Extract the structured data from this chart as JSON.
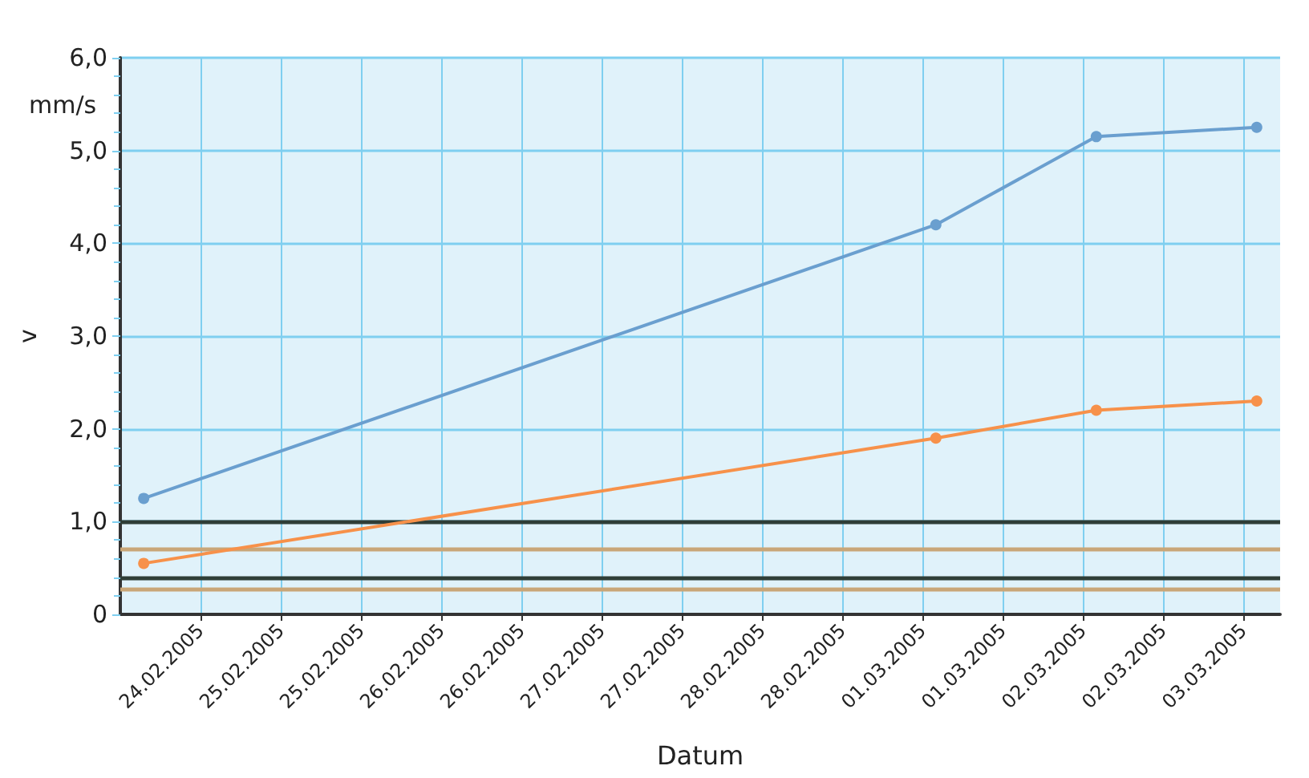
{
  "chart_data": {
    "type": "line",
    "xlabel": "Datum",
    "ylabel": "v",
    "annotations": [
      "mm/s"
    ],
    "xlim": [
      "2005-02-24T00:00",
      "2005-03-03T05:30"
    ],
    "xticks": [
      {
        "value": "2005-02-24T12:00",
        "label": "24.02.2005"
      },
      {
        "value": "2005-02-25T00:00",
        "label": "25.02.2005"
      },
      {
        "value": "2005-02-25T12:00",
        "label": "25.02.2005"
      },
      {
        "value": "2005-02-26T00:00",
        "label": "26.02.2005"
      },
      {
        "value": "2005-02-26T12:00",
        "label": "26.02.2005"
      },
      {
        "value": "2005-02-27T00:00",
        "label": "27.02.2005"
      },
      {
        "value": "2005-02-27T12:00",
        "label": "27.02.2005"
      },
      {
        "value": "2005-02-28T00:00",
        "label": "28.02.2005"
      },
      {
        "value": "2005-02-28T12:00",
        "label": "28.02.2005"
      },
      {
        "value": "2005-03-01T00:00",
        "label": "01.03.2005"
      },
      {
        "value": "2005-03-01T12:00",
        "label": "01.03.2005"
      },
      {
        "value": "2005-03-02T00:00",
        "label": "02.03.2005"
      },
      {
        "value": "2005-03-02T12:00",
        "label": "02.03.2005"
      },
      {
        "value": "2005-03-03T00:00",
        "label": "03.03.2005"
      }
    ],
    "ylim": [
      0,
      6
    ],
    "yticks": [
      0,
      {
        "value": 1,
        "label": "1,0"
      },
      {
        "value": 2,
        "label": "2,0"
      },
      {
        "value": 3,
        "label": "3,0"
      },
      {
        "value": 4,
        "label": "4,0"
      },
      {
        "value": 5,
        "label": "5,0"
      },
      {
        "value": 6,
        "label": "6,0"
      }
    ],
    "x": [
      "2005-02-24T03:30",
      "2005-03-01T02:00",
      "2005-03-02T02:00",
      "2005-03-03T02:00"
    ],
    "series": [
      {
        "color": "#6a9fcf",
        "values": [
          1.25,
          4.2,
          5.15,
          5.25
        ]
      },
      {
        "color": "#f7914a",
        "values": [
          0.55,
          1.9,
          2.2,
          2.3
        ]
      }
    ],
    "ref_lines": [
      {
        "axis": "y",
        "value": 1.0,
        "label": null,
        "color": "#2f3e37"
      },
      {
        "axis": "y",
        "value": 0.7,
        "label": null,
        "color": "#c9a678"
      },
      {
        "axis": "y",
        "value": 0.4,
        "label": null,
        "color": "#2f3e37"
      },
      {
        "axis": "y",
        "value": 0.27,
        "label": null,
        "color": "#c9a678"
      }
    ],
    "grid": true,
    "marker": "circle",
    "line_style": "solid"
  }
}
